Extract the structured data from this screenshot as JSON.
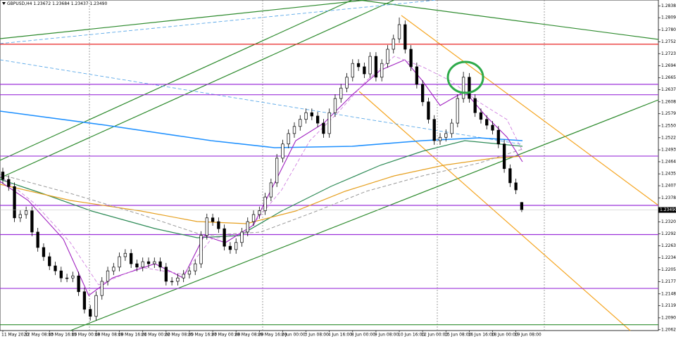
{
  "chart_data": {
    "type": "candlestick",
    "title": "GBPUSD,H4 1.23672 1.23684 1.23437 1.23490",
    "categories": [
      "11 May 2020",
      null,
      null,
      null,
      "12 May 08:00",
      null,
      null,
      null,
      "13 May 16:00",
      null,
      null,
      null,
      "15 May 00:00",
      null,
      null,
      null,
      "18 May 08:00",
      null,
      null,
      null,
      "19 May 16:00",
      null,
      null,
      null,
      "21 May 00:00",
      null,
      null,
      null,
      "22 May 08:00",
      null,
      null,
      null,
      "25 May 16:00",
      null,
      null,
      null,
      "27 May 00:00",
      null,
      null,
      null,
      "28 May 08:00",
      null,
      null,
      null,
      "29 May 16:00",
      null,
      null,
      null,
      "2 Jun 00:00",
      null,
      null,
      null,
      "3 Jun 08:00",
      null,
      null,
      null,
      "4 Jun 16:00",
      null,
      null,
      null,
      "8 Jun 00:00",
      null,
      null,
      null,
      "9 Jun 08:00",
      null,
      null,
      null,
      "10 Jun 16:00",
      null,
      null,
      null,
      "12 Jun 00:00",
      null,
      null,
      null,
      "15 Jun 08:00",
      null,
      null,
      null,
      "16 Jun 16:00",
      null,
      null,
      null,
      "18 Jun 00:00",
      null,
      null,
      null,
      "19 Jun 08:00",
      null
    ],
    "open": [
      1.244,
      1.2422,
      1.2405,
      1.233,
      1.2338,
      1.2347,
      1.2296,
      1.2259,
      1.2237,
      1.2215,
      1.2203,
      1.2186,
      1.2186,
      1.2191,
      1.2153,
      1.2111,
      1.2094,
      1.2144,
      1.2178,
      1.2203,
      1.2212,
      1.2237,
      1.2245,
      1.222,
      1.2212,
      1.2225,
      1.222,
      1.2225,
      1.2212,
      1.2178,
      1.2178,
      1.2186,
      1.2195,
      1.2203,
      1.222,
      1.2288,
      1.233,
      1.2321,
      1.2304,
      1.2262,
      1.2254,
      1.2271,
      1.2296,
      1.2321,
      1.2338,
      1.2347,
      1.238,
      1.2414,
      1.2473,
      1.2507,
      1.2532,
      1.2549,
      1.2566,
      1.2582,
      1.2574,
      1.2557,
      1.2532,
      1.2582,
      1.2616,
      1.2641,
      1.2667,
      1.27,
      1.2692,
      1.2675,
      1.2717,
      1.2667,
      1.27,
      1.2734,
      1.2759,
      1.2793,
      1.2734,
      1.2692,
      1.265,
      1.2608,
      1.2566,
      1.2515,
      1.2523,
      1.2532,
      1.2557,
      1.2616,
      1.2667,
      1.2616,
      1.2582,
      1.2566,
      1.2552,
      1.254,
      1.2507,
      1.2448,
      1.2414,
      1.2367
    ],
    "high": [
      1.245,
      1.2432,
      1.2415,
      1.2348,
      1.2357,
      1.2357,
      1.2306,
      1.2269,
      1.2247,
      1.2225,
      1.2213,
      1.2196,
      1.2201,
      1.2201,
      1.2163,
      1.2121,
      1.2154,
      1.2188,
      1.2213,
      1.2222,
      1.2247,
      1.2255,
      1.2255,
      1.223,
      1.2235,
      1.2235,
      1.2235,
      1.2235,
      1.2222,
      1.2188,
      1.2196,
      1.2205,
      1.2213,
      1.223,
      1.2298,
      1.234,
      1.234,
      1.2331,
      1.2314,
      1.2272,
      1.2281,
      1.2306,
      1.2331,
      1.2348,
      1.2357,
      1.239,
      1.2424,
      1.2483,
      1.2517,
      1.2542,
      1.2559,
      1.2576,
      1.2592,
      1.2592,
      1.2584,
      1.2567,
      1.2592,
      1.2626,
      1.2651,
      1.2677,
      1.271,
      1.271,
      1.2702,
      1.2727,
      1.2727,
      1.271,
      1.2744,
      1.2769,
      1.281,
      1.2803,
      1.2744,
      1.2702,
      1.266,
      1.2618,
      1.2576,
      1.2533,
      1.2542,
      1.2567,
      1.2626,
      1.268,
      1.2677,
      1.2626,
      1.2592,
      1.2576,
      1.2562,
      1.255,
      1.2517,
      1.2458,
      1.2424,
      1.2368
    ],
    "low": [
      1.2412,
      1.2395,
      1.232,
      1.232,
      1.2328,
      1.2286,
      1.2249,
      1.2227,
      1.2205,
      1.2193,
      1.2176,
      1.2176,
      1.2176,
      1.2143,
      1.2101,
      1.2084,
      1.2084,
      1.2134,
      1.2168,
      1.2193,
      1.2202,
      1.2227,
      1.221,
      1.2202,
      1.2202,
      1.221,
      1.221,
      1.2202,
      1.2168,
      1.2168,
      1.2168,
      1.2176,
      1.2185,
      1.2193,
      1.221,
      1.2278,
      1.2311,
      1.2294,
      1.2252,
      1.2244,
      1.2244,
      1.2261,
      1.2286,
      1.2311,
      1.2328,
      1.2337,
      1.237,
      1.2404,
      1.2463,
      1.2497,
      1.2522,
      1.2539,
      1.2556,
      1.2564,
      1.2547,
      1.2522,
      1.2522,
      1.2572,
      1.2606,
      1.2631,
      1.2657,
      1.2682,
      1.2665,
      1.2665,
      1.2657,
      1.2657,
      1.269,
      1.2724,
      1.2749,
      1.2724,
      1.2682,
      1.264,
      1.2598,
      1.2556,
      1.2505,
      1.2505,
      1.2513,
      1.2522,
      1.2547,
      1.2606,
      1.2606,
      1.2572,
      1.2556,
      1.2542,
      1.253,
      1.2497,
      1.2438,
      1.2404,
      1.2387,
      1.2344
    ],
    "close": [
      1.2422,
      1.2405,
      1.233,
      1.2338,
      1.2347,
      1.2296,
      1.2259,
      1.2237,
      1.2215,
      1.2203,
      1.2186,
      1.2186,
      1.2191,
      1.2153,
      1.2111,
      1.2094,
      1.2144,
      1.2178,
      1.2203,
      1.2212,
      1.2237,
      1.2245,
      1.222,
      1.2212,
      1.2225,
      1.222,
      1.2225,
      1.2212,
      1.2178,
      1.2178,
      1.2186,
      1.2195,
      1.2203,
      1.222,
      1.2288,
      1.233,
      1.2321,
      1.2304,
      1.2262,
      1.2254,
      1.2271,
      1.2296,
      1.2321,
      1.2338,
      1.2347,
      1.238,
      1.2414,
      1.2473,
      1.2507,
      1.2532,
      1.2549,
      1.2566,
      1.2582,
      1.2574,
      1.2557,
      1.2532,
      1.2582,
      1.2616,
      1.2641,
      1.2667,
      1.27,
      1.2692,
      1.2675,
      1.2717,
      1.2667,
      1.27,
      1.2734,
      1.2759,
      1.2793,
      1.2734,
      1.2692,
      1.265,
      1.2608,
      1.2566,
      1.2515,
      1.2523,
      1.2532,
      1.2557,
      1.2616,
      1.2667,
      1.2616,
      1.2582,
      1.2566,
      1.2552,
      1.254,
      1.2507,
      1.2448,
      1.2414,
      1.2397,
      1.2349
    ],
    "last_price_label": "1.23490",
    "ylim": [
      1.206,
      1.2852
    ],
    "yticks": [
      {
        "value": 1.2838,
        "label": "1.28380"
      },
      {
        "value": 1.28095,
        "label": "1.28095"
      },
      {
        "value": 1.27805,
        "label": "1.27805"
      },
      {
        "value": 1.2752,
        "label": "1.27520"
      },
      {
        "value": 1.27235,
        "label": "1.27235"
      },
      {
        "value": 1.26945,
        "label": "1.26945"
      },
      {
        "value": 1.26655,
        "label": "1.26655"
      },
      {
        "value": 1.2637,
        "label": "1.26370"
      },
      {
        "value": 1.2608,
        "label": "1.26080"
      },
      {
        "value": 1.25795,
        "label": "1.25795"
      },
      {
        "value": 1.25505,
        "label": "1.25505"
      },
      {
        "value": 1.2522,
        "label": "1.25220"
      },
      {
        "value": 1.2493,
        "label": "1.24930"
      },
      {
        "value": 1.24645,
        "label": "1.24645"
      },
      {
        "value": 1.24355,
        "label": "1.24355"
      },
      {
        "value": 1.2407,
        "label": "1.24070"
      },
      {
        "value": 1.2378,
        "label": "1.23780"
      },
      {
        "value": 1.23205,
        "label": "1.23205"
      },
      {
        "value": 1.2292,
        "label": "1.22920"
      },
      {
        "value": 1.2263,
        "label": "1.22630"
      },
      {
        "value": 1.22345,
        "label": "1.22345"
      },
      {
        "value": 1.22055,
        "label": "1.22055"
      },
      {
        "value": 1.2177,
        "label": "1.21770"
      },
      {
        "value": 1.2148,
        "label": "1.21480"
      },
      {
        "value": 1.21195,
        "label": "1.21195"
      },
      {
        "value": 1.20905,
        "label": "1.20905"
      },
      {
        "value": 1.2062,
        "label": "1.20620"
      }
    ],
    "levels": [
      {
        "value": 1.2746,
        "color": "#e82020"
      },
      {
        "value": 1.265,
        "color": "#9b30d9"
      },
      {
        "value": 1.2625,
        "color": "#9b30d9"
      },
      {
        "value": 1.2478,
        "color": "#9b30d9"
      },
      {
        "value": 1.236,
        "color": "#9b30d9"
      },
      {
        "value": 1.229,
        "color": "#9b30d9"
      },
      {
        "value": 1.2161,
        "color": "#9b30d9"
      },
      {
        "value": 1.2074,
        "color": "#2e8b2e"
      }
    ],
    "bull_color": "#ffffff",
    "bear_color": "#000000"
  }
}
